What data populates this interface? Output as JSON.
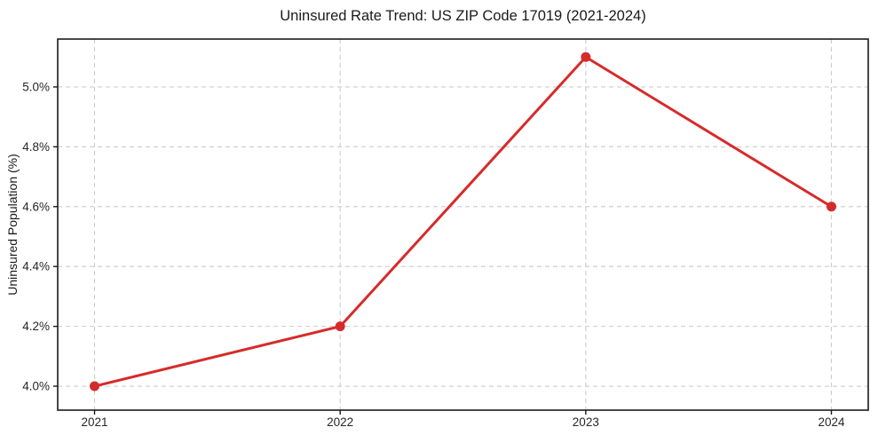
{
  "page": {
    "title": "Uninsured Rate Trend: US ZIP Code 17019 (2021-2024)"
  },
  "chart_data": {
    "type": "line",
    "title": "Uninsured Rate Trend: US ZIP Code 17019 (2021-2024)",
    "xlabel": "",
    "ylabel": "Uninsured Population (%)",
    "categories": [
      "2021",
      "2022",
      "2023",
      "2024"
    ],
    "values": [
      4.0,
      4.2,
      5.1,
      4.6
    ],
    "yticks": [
      4.0,
      4.2,
      4.4,
      4.6,
      4.8,
      5.0
    ],
    "ytick_labels": [
      "4.0%",
      "4.2%",
      "4.4%",
      "4.6%",
      "4.8%",
      "5.0%"
    ],
    "xlim": [
      -0.15,
      3.15
    ],
    "ylim": [
      3.92,
      5.16
    ],
    "grid": true,
    "grid_style": "dashed",
    "legend_position": "none",
    "line_color": "#d62b2b",
    "marker": "circle",
    "grid_color": "#cccccc",
    "spine_color": "#1a1a1a",
    "tick_label_color": "#262626"
  }
}
